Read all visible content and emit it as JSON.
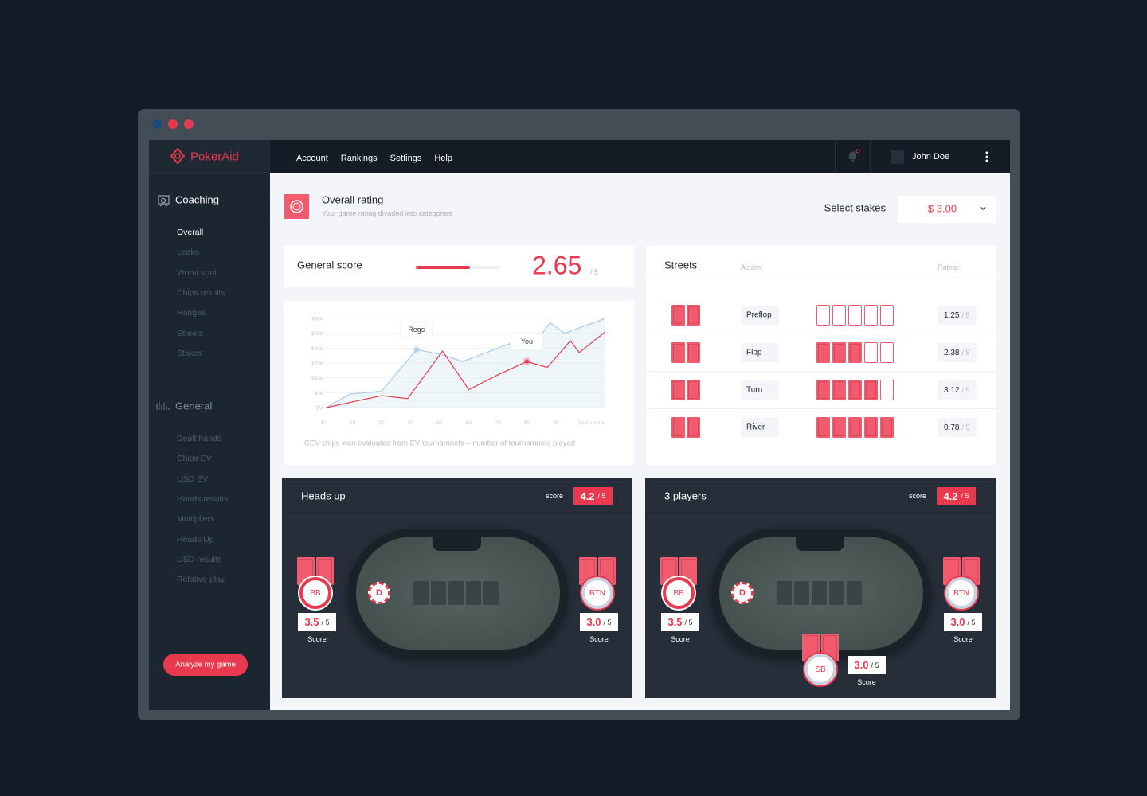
{
  "logo": "PokerAid",
  "nav": [
    "Account",
    "Rankings",
    "Settings",
    "Help"
  ],
  "user": "John Doe",
  "sidebar": {
    "sections": [
      {
        "title": "Coaching",
        "active": 0,
        "items": [
          "Overall",
          "Leaks",
          "Worst spot",
          "Chips results",
          "Ranges",
          "Streets",
          "Stakes"
        ]
      },
      {
        "title": "General",
        "items": [
          "Dealt hands",
          "Chips EV",
          "USD EV",
          "Hands results",
          "Multipliers",
          "Heads Up",
          "USD results",
          "Relative play"
        ]
      }
    ],
    "button": "Analyze my game"
  },
  "header": {
    "title": "Overall rating",
    "subtitle": "Your game rating divaded into categories",
    "stakes_label": "Select stakes",
    "stakes_value": "$ 3.00"
  },
  "general_score": {
    "label": "General score",
    "score": "2.65",
    "out_of": "/ 5",
    "progress": 64
  },
  "chart_data": {
    "type": "line",
    "x_label": "Tournaments",
    "caption": "CEV chips won evaluated from EV tournamnets – number of tournamnets played",
    "xlim": [
      10,
      107
    ],
    "xticks": [
      10,
      20,
      30,
      40,
      50,
      60,
      70,
      80,
      90
    ],
    "ylim": [
      -10,
      50
    ],
    "yticks": [
      {
        "value": -10,
        "label": "EV"
      },
      {
        "value": 0,
        "label": "$0k"
      },
      {
        "value": 10,
        "label": "$10k"
      },
      {
        "value": 20,
        "label": "$20k"
      },
      {
        "value": 30,
        "label": "$30k"
      },
      {
        "value": 40,
        "label": "$40k"
      },
      {
        "value": 50,
        "label": "$50k"
      }
    ],
    "grid": true,
    "series": [
      {
        "name": "Regs",
        "color": "#a9cbe6",
        "area": true,
        "marker": 3,
        "x": [
          11,
          19,
          30,
          42,
          50,
          58,
          74,
          81,
          88,
          93,
          107
        ],
        "values": [
          -10,
          -1,
          1,
          29,
          26,
          21,
          33,
          29,
          47,
          40,
          50
        ]
      },
      {
        "name": "You",
        "color": "#e8394e",
        "area": false,
        "marker": 6,
        "x": [
          11,
          30,
          39,
          51,
          60,
          70,
          80,
          87,
          95,
          98,
          107
        ],
        "values": [
          -10,
          -2,
          -4,
          28,
          2,
          12,
          21,
          17,
          35,
          27,
          41
        ]
      }
    ]
  },
  "streets": {
    "title": "Streets",
    "action_label": "Action:",
    "rating_label": "Rating:",
    "rows": [
      {
        "name": "Preflop",
        "action_cards": 0,
        "rating": "1.25",
        "out_of": "/ 5"
      },
      {
        "name": "Flop",
        "action_cards": 3,
        "rating": "2.38",
        "out_of": "/ 5"
      },
      {
        "name": "Turn",
        "action_cards": 4,
        "rating": "3.12",
        "out_of": "/ 5"
      },
      {
        "name": "River",
        "action_cards": 5,
        "rating": "0.78",
        "out_of": "/ 5"
      }
    ]
  },
  "tables": [
    {
      "title": "Heads up",
      "score_label": "score",
      "score": "4.2",
      "out_of": "/ 5",
      "dealer": "D",
      "seats": [
        {
          "position": "BB",
          "score": "3.5",
          "out_of": "/ 5",
          "label": "Score"
        },
        {
          "position": "BTN",
          "score": "3.0",
          "out_of": "/ 5",
          "label": "Score"
        }
      ]
    },
    {
      "title": "3 players",
      "score_label": "score",
      "score": "4.2",
      "out_of": "/ 5",
      "dealer": "D",
      "seats": [
        {
          "position": "BB",
          "score": "3.5",
          "out_of": "/ 5",
          "label": "Score"
        },
        {
          "position": "BTN",
          "score": "3.0",
          "out_of": "/ 5",
          "label": "Score"
        },
        {
          "position": "SB",
          "score": "3.0",
          "out_of": "/ 5",
          "label": "Score"
        }
      ]
    }
  ]
}
